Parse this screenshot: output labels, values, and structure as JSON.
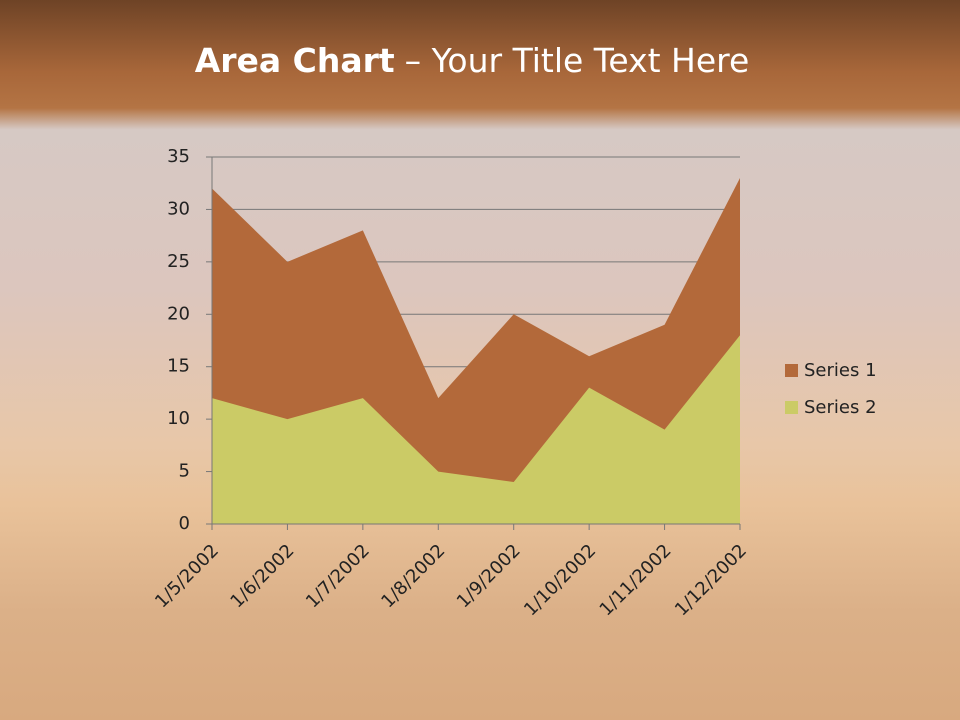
{
  "chart_data": {
    "type": "area",
    "title": [
      "Area Chart",
      "– Your Title Text Here"
    ],
    "categories": [
      "1/5/2002",
      "1/6/2002",
      "1/7/2002",
      "1/8/2002",
      "1/9/2002",
      "1/10/2002",
      "1/11/2002",
      "1/12/2002"
    ],
    "series": [
      {
        "name": "Series 1",
        "color": "#b3693a",
        "values": [
          32,
          25,
          28,
          12,
          20,
          16,
          19,
          33
        ]
      },
      {
        "name": "Series 2",
        "color": "#cbcb66",
        "values": [
          12,
          10,
          12,
          5,
          4,
          13,
          9,
          18
        ]
      }
    ],
    "ylim": [
      0,
      35
    ],
    "yticks": [
      0,
      5,
      10,
      15,
      20,
      25,
      30,
      35
    ],
    "grid": true,
    "legend": "right"
  }
}
